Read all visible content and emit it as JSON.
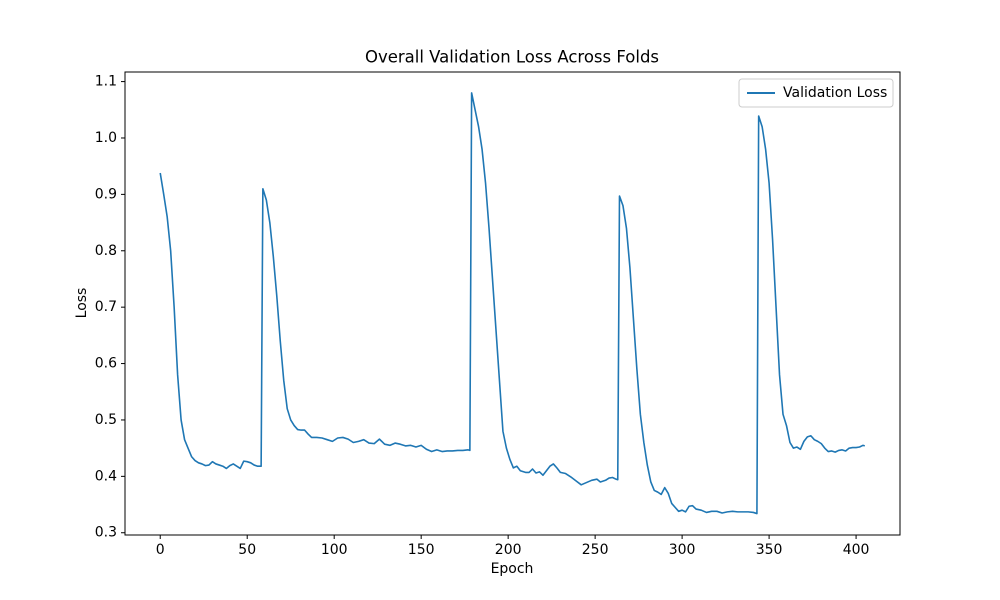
{
  "chart_data": {
    "type": "line",
    "title": "Overall Validation Loss Across Folds",
    "x_label": "Epoch",
    "y_label": "Loss",
    "x": [
      0,
      2,
      4,
      6,
      8,
      10,
      12,
      14,
      16,
      18,
      20,
      22,
      24,
      26,
      28,
      30,
      32,
      34,
      36,
      38,
      40,
      42,
      44,
      46,
      48,
      50,
      52,
      54,
      56,
      58,
      59,
      61,
      63,
      65,
      67,
      69,
      71,
      73,
      75,
      77,
      79,
      81,
      83,
      85,
      87,
      90,
      93,
      96,
      99,
      102,
      105,
      108,
      111,
      114,
      117,
      120,
      123,
      126,
      129,
      132,
      135,
      138,
      141,
      144,
      147,
      150,
      153,
      156,
      159,
      162,
      165,
      168,
      171,
      174,
      177,
      178,
      179,
      181,
      183,
      185,
      187,
      189,
      191,
      193,
      195,
      197,
      199,
      201,
      203,
      205,
      207,
      210,
      212,
      214,
      216,
      218,
      220,
      222,
      224,
      226,
      228,
      230,
      233,
      236,
      239,
      242,
      245,
      248,
      251,
      253,
      256,
      258,
      260,
      262,
      263,
      264,
      266,
      268,
      270,
      272,
      274,
      276,
      278,
      280,
      282,
      284,
      286,
      288,
      290,
      292,
      294,
      296,
      298,
      300,
      302,
      304,
      306,
      308,
      311,
      314,
      317,
      320,
      323,
      326,
      329,
      332,
      335,
      338,
      341,
      343,
      344,
      346,
      348,
      350,
      352,
      354,
      356,
      358,
      360,
      362,
      364,
      366,
      368,
      370,
      372,
      374,
      376,
      378,
      380,
      382,
      384,
      386,
      388,
      390,
      392,
      394,
      396,
      398,
      400,
      402,
      404,
      405
    ],
    "series": [
      {
        "name": "Validation Loss",
        "color": "#1f77b4",
        "values": [
          0.938,
          0.9,
          0.86,
          0.8,
          0.7,
          0.58,
          0.5,
          0.465,
          0.45,
          0.435,
          0.428,
          0.424,
          0.422,
          0.419,
          0.42,
          0.426,
          0.422,
          0.42,
          0.418,
          0.414,
          0.419,
          0.422,
          0.418,
          0.414,
          0.427,
          0.426,
          0.424,
          0.42,
          0.418,
          0.418,
          0.91,
          0.89,
          0.85,
          0.79,
          0.72,
          0.64,
          0.57,
          0.52,
          0.5,
          0.49,
          0.483,
          0.482,
          0.482,
          0.475,
          0.469,
          0.469,
          0.468,
          0.465,
          0.462,
          0.468,
          0.469,
          0.466,
          0.46,
          0.462,
          0.465,
          0.459,
          0.458,
          0.466,
          0.457,
          0.455,
          0.459,
          0.457,
          0.454,
          0.455,
          0.452,
          0.455,
          0.448,
          0.444,
          0.447,
          0.444,
          0.445,
          0.445,
          0.446,
          0.446,
          0.447,
          0.446,
          1.08,
          1.05,
          1.02,
          0.98,
          0.92,
          0.84,
          0.75,
          0.66,
          0.57,
          0.48,
          0.45,
          0.43,
          0.415,
          0.418,
          0.41,
          0.407,
          0.407,
          0.413,
          0.406,
          0.408,
          0.402,
          0.41,
          0.418,
          0.422,
          0.415,
          0.407,
          0.405,
          0.399,
          0.392,
          0.385,
          0.389,
          0.393,
          0.395,
          0.39,
          0.393,
          0.397,
          0.398,
          0.395,
          0.394,
          0.897,
          0.88,
          0.84,
          0.77,
          0.68,
          0.59,
          0.51,
          0.46,
          0.42,
          0.39,
          0.375,
          0.372,
          0.368,
          0.38,
          0.37,
          0.352,
          0.345,
          0.338,
          0.34,
          0.337,
          0.347,
          0.348,
          0.342,
          0.34,
          0.336,
          0.338,
          0.338,
          0.335,
          0.337,
          0.338,
          0.337,
          0.337,
          0.337,
          0.336,
          0.334,
          1.039,
          1.02,
          0.98,
          0.92,
          0.82,
          0.7,
          0.58,
          0.51,
          0.49,
          0.46,
          0.45,
          0.452,
          0.448,
          0.462,
          0.47,
          0.472,
          0.465,
          0.462,
          0.458,
          0.45,
          0.444,
          0.445,
          0.443,
          0.446,
          0.447,
          0.445,
          0.45,
          0.451,
          0.451,
          0.452,
          0.455,
          0.454
        ]
      }
    ],
    "xlim": [
      -20.25,
      425.25
    ],
    "ylim": [
      0.296,
      1.117
    ],
    "xticks": [
      0,
      50,
      100,
      150,
      200,
      250,
      300,
      350,
      400
    ],
    "yticks": [
      0.3,
      0.4,
      0.5,
      0.6,
      0.7,
      0.8,
      0.9,
      {
        "value": 1.0,
        "label": "1.0"
      },
      1.1
    ],
    "legend": "upper right"
  }
}
